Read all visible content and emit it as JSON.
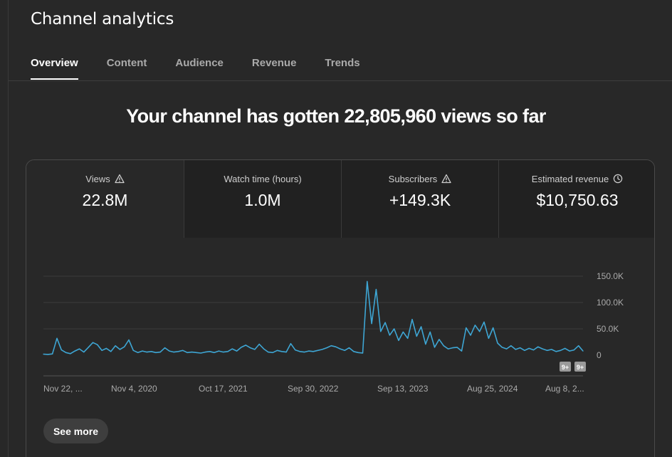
{
  "page": {
    "title": "Channel analytics"
  },
  "tabs": [
    {
      "label": "Overview",
      "active": true
    },
    {
      "label": "Content",
      "active": false
    },
    {
      "label": "Audience",
      "active": false
    },
    {
      "label": "Revenue",
      "active": false
    },
    {
      "label": "Trends",
      "active": false
    }
  ],
  "headline": "Your channel has gotten 22,805,960 views so far",
  "metrics": [
    {
      "label": "Views",
      "value": "22.8M",
      "icon": "warning-icon"
    },
    {
      "label": "Watch time (hours)",
      "value": "1.0M",
      "icon": ""
    },
    {
      "label": "Subscribers",
      "value": "+149.3K",
      "icon": "warning-icon"
    },
    {
      "label": "Estimated revenue",
      "value": "$10,750.63",
      "icon": "clock-icon"
    }
  ],
  "see_more_label": "See more",
  "badges": [
    "9+",
    "9+"
  ],
  "colors": {
    "accent": "#3ea6d4",
    "background": "#282828"
  },
  "chart_data": {
    "type": "line",
    "x_tick_labels": [
      "Nov 22, ...",
      "Nov 4, 2020",
      "Oct 17, 2021",
      "Sep 30, 2022",
      "Sep 13, 2023",
      "Aug 25, 2024",
      "Aug 8, 2..."
    ],
    "y_tick_labels": [
      "0",
      "50.0K",
      "100.0K",
      "150.0K"
    ],
    "ylim": [
      0,
      150000
    ],
    "grid": true,
    "series": [
      {
        "values": [
          2000,
          1500,
          2500,
          32000,
          10000,
          5000,
          3000,
          8000,
          12000,
          6000,
          15000,
          24000,
          20000,
          9000,
          13000,
          7000,
          18000,
          11000,
          16000,
          29000,
          9000,
          5000,
          8000,
          6000,
          7000,
          5000,
          6000,
          14000,
          8000,
          6000,
          7000,
          9000,
          5000,
          6000,
          5000,
          4000,
          6000,
          7000,
          5000,
          8000,
          6000,
          7000,
          12000,
          8000,
          15000,
          19000,
          14000,
          11000,
          21000,
          12000,
          6000,
          5000,
          9000,
          7000,
          6000,
          22000,
          10000,
          7000,
          6000,
          8000,
          7000,
          9000,
          11000,
          14000,
          18000,
          16000,
          12000,
          9000,
          14000,
          7000,
          5000,
          4000,
          140000,
          60000,
          125000,
          45000,
          62000,
          38000,
          50000,
          28000,
          44000,
          32000,
          68000,
          36000,
          54000,
          21000,
          44000,
          15000,
          30000,
          18000,
          12000,
          14000,
          15000,
          8000,
          52000,
          38000,
          57000,
          45000,
          63000,
          32000,
          52000,
          23000,
          15000,
          12000,
          18000,
          11000,
          14000,
          9000,
          13000,
          10000,
          16000,
          12000,
          9000,
          11000,
          7000,
          9000,
          13000,
          8000,
          10000,
          18000,
          8000
        ]
      }
    ]
  }
}
